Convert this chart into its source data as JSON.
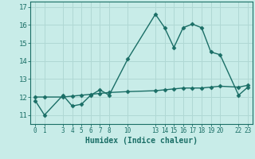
{
  "xlabel": "Humidex (Indice chaleur)",
  "bg_color": "#c8ece8",
  "line_color": "#1a6e66",
  "grid_color": "#b0d8d4",
  "series1_x": [
    0,
    1,
    3,
    4,
    5,
    6,
    7,
    8,
    10,
    13,
    14,
    15,
    16,
    17,
    18,
    19,
    20,
    22,
    23
  ],
  "series1_y": [
    11.8,
    11.0,
    12.1,
    11.5,
    11.6,
    12.1,
    12.4,
    12.1,
    14.1,
    16.6,
    15.85,
    14.75,
    15.85,
    16.05,
    15.85,
    14.5,
    14.35,
    12.1,
    12.55
  ],
  "series2_x": [
    0,
    1,
    3,
    4,
    5,
    6,
    7,
    8,
    10,
    13,
    14,
    15,
    16,
    17,
    18,
    19,
    20,
    22,
    23
  ],
  "series2_y": [
    12.0,
    12.0,
    12.0,
    12.05,
    12.1,
    12.15,
    12.2,
    12.25,
    12.3,
    12.35,
    12.4,
    12.45,
    12.5,
    12.5,
    12.5,
    12.55,
    12.6,
    12.55,
    12.65
  ],
  "xtick_positions": [
    0,
    1,
    3,
    4,
    5,
    6,
    7,
    8,
    10,
    13,
    14,
    15,
    16,
    17,
    18,
    19,
    20,
    22,
    23
  ],
  "xtick_labels": [
    "0",
    "1",
    "3",
    "4",
    "5",
    "6",
    "7",
    "8",
    "10",
    "13",
    "14",
    "15",
    "16",
    "17",
    "18",
    "19",
    "20",
    "22",
    "23"
  ],
  "ylim": [
    10.5,
    17.3
  ],
  "xlim": [
    -0.5,
    23.5
  ],
  "ytick_positions": [
    11,
    12,
    13,
    14,
    15,
    16,
    17
  ],
  "ytick_labels": [
    "11",
    "12",
    "13",
    "14",
    "15",
    "16",
    "17"
  ]
}
